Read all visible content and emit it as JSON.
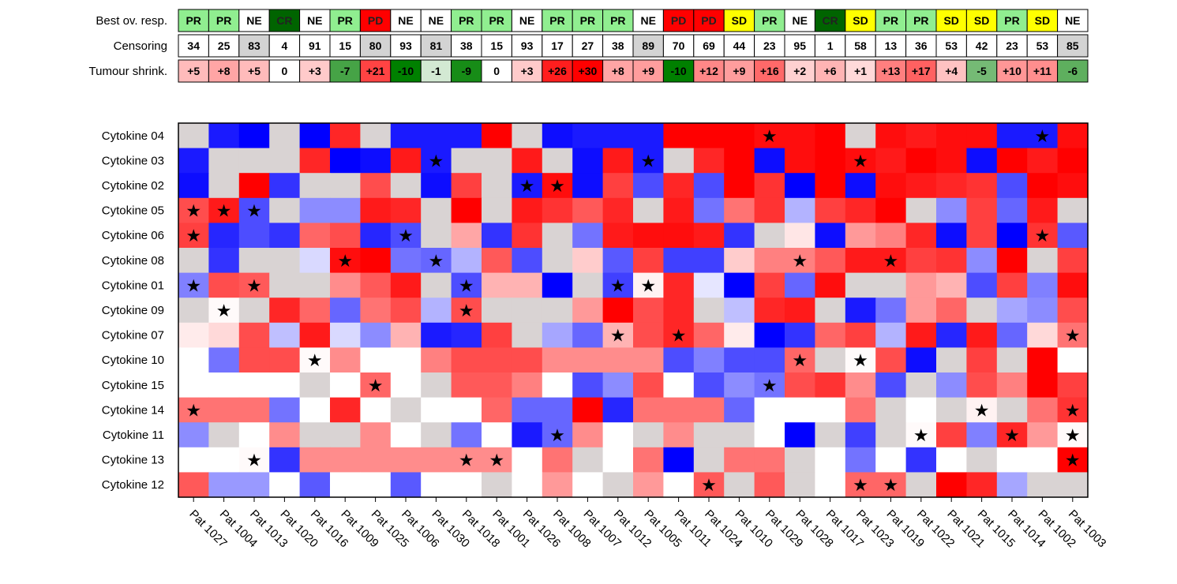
{
  "chart_data": {
    "type": "heatmap",
    "annotation_rows": [
      {
        "label": "Best ov. resp.",
        "values": [
          "PR",
          "PR",
          "NE",
          "CR",
          "NE",
          "PR",
          "PD",
          "NE",
          "NE",
          "PR",
          "PR",
          "NE",
          "PR",
          "PR",
          "PR",
          "NE",
          "PD",
          "PD",
          "SD",
          "PR",
          "NE",
          "CR",
          "SD",
          "PR",
          "PR",
          "SD",
          "SD",
          "PR",
          "SD",
          "NE"
        ]
      },
      {
        "label": "Censoring",
        "values": [
          "34",
          "25",
          "83",
          "4",
          "91",
          "15",
          "80",
          "93",
          "81",
          "38",
          "15",
          "93",
          "17",
          "27",
          "38",
          "89",
          "70",
          "69",
          "44",
          "23",
          "95",
          "1",
          "58",
          "13",
          "36",
          "53",
          "42",
          "23",
          "53",
          "85"
        ]
      },
      {
        "label": "Tumour shrink.",
        "values": [
          "+5",
          "+8",
          "+5",
          "0",
          "+3",
          "-7",
          "+21",
          "-10",
          "-1",
          "-9",
          "0",
          "+3",
          "+26",
          "+30",
          "+8",
          "+9",
          "-10",
          "+12",
          "+9",
          "+16",
          "+2",
          "+6",
          "+1",
          "+13",
          "+17",
          "+4",
          "-5",
          "+10",
          "+11",
          "-6"
        ]
      }
    ],
    "response_colors": {
      "PR": "#90ee90",
      "NE": "#ffffff",
      "CR": "#006400",
      "PD": "#ff0000",
      "SD": "#ffff00"
    },
    "censored_values": [
      "83",
      "80",
      "81",
      "89",
      "85"
    ],
    "censored_color": "#d3d3d3",
    "patients": [
      "Pat 1027",
      "Pat 1004",
      "Pat 1013",
      "Pat 1020",
      "Pat 1016",
      "Pat 1009",
      "Pat 1025",
      "Pat 1006",
      "Pat 1030",
      "Pat 1018",
      "Pat 1001",
      "Pat 1026",
      "Pat 1008",
      "Pat 1007",
      "Pat 1012",
      "Pat 1005",
      "Pat 1011",
      "Pat 1024",
      "Pat 1010",
      "Pat 1029",
      "Pat 1028",
      "Pat 1017",
      "Pat 1023",
      "Pat 1019",
      "Pat 1022",
      "Pat 1021",
      "Pat 1015",
      "Pat 1014",
      "Pat 1002",
      "Pat 1003"
    ],
    "cytokines": [
      "Cytokine 04",
      "Cytokine 03",
      "Cytokine 02",
      "Cytokine 05",
      "Cytokine 06",
      "Cytokine 08",
      "Cytokine 01",
      "Cytokine 09",
      "Cytokine 07",
      "Cytokine 10",
      "Cytokine 15",
      "Cytokine 14",
      "Cytokine 11",
      "Cytokine 13",
      "Cytokine 12"
    ],
    "value_range": [
      -1,
      1
    ],
    "na_color": "#d9d3d3",
    "values": [
      [
        null,
        -0.9,
        -1,
        null,
        -1,
        0.85,
        null,
        -0.9,
        -0.9,
        -0.9,
        1,
        null,
        -0.95,
        -0.9,
        -0.9,
        -0.9,
        1,
        1,
        1,
        0.95,
        0.95,
        1,
        null,
        0.95,
        0.9,
        0.95,
        0.95,
        -0.9,
        -0.9,
        0.95
      ],
      [
        -0.9,
        null,
        null,
        null,
        0.85,
        -1,
        -0.95,
        0.9,
        -0.9,
        null,
        null,
        0.9,
        null,
        -0.95,
        0.9,
        -0.9,
        null,
        0.85,
        1,
        -0.95,
        0.95,
        1,
        0.95,
        0.9,
        1,
        0.95,
        -0.95,
        1,
        0.9,
        1
      ],
      [
        -0.95,
        null,
        1,
        -0.8,
        null,
        null,
        0.7,
        null,
        -0.95,
        0.75,
        null,
        -0.9,
        0.95,
        -0.95,
        0.75,
        -0.7,
        0.85,
        -0.7,
        1,
        0.8,
        -1,
        1,
        -0.95,
        0.95,
        0.9,
        0.85,
        0.8,
        -0.7,
        1,
        0.95
      ],
      [
        0.7,
        0.9,
        -0.7,
        null,
        -0.45,
        -0.45,
        0.9,
        0.85,
        null,
        1,
        null,
        0.9,
        0.8,
        0.65,
        0.85,
        null,
        0.9,
        -0.55,
        0.55,
        0.8,
        -0.3,
        0.75,
        0.85,
        1,
        null,
        -0.45,
        0.75,
        -0.6,
        0.9,
        null
      ],
      [
        0.75,
        -0.85,
        -0.7,
        -0.8,
        0.6,
        0.7,
        -0.85,
        -0.7,
        null,
        0.35,
        -0.8,
        0.8,
        null,
        -0.55,
        0.9,
        0.95,
        0.95,
        0.9,
        -0.8,
        null,
        0.1,
        -0.95,
        0.4,
        0.5,
        0.85,
        -0.95,
        0.75,
        -1,
        0.8,
        -0.65
      ],
      [
        null,
        -0.8,
        null,
        null,
        -0.15,
        0.95,
        1,
        -0.55,
        -0.6,
        -0.3,
        0.65,
        -0.7,
        null,
        0.2,
        -0.65,
        0.75,
        -0.75,
        -0.75,
        0.2,
        0.5,
        0.5,
        0.65,
        0.9,
        0.9,
        0.75,
        0.8,
        -0.45,
        1,
        null,
        0.75
      ],
      [
        -0.5,
        0.7,
        0.65,
        null,
        null,
        0.45,
        0.65,
        0.9,
        null,
        -0.7,
        0.3,
        0.3,
        -1,
        null,
        -0.75,
        0.05,
        0.85,
        -0.1,
        -1,
        0.75,
        -0.6,
        0.95,
        null,
        null,
        0.4,
        0.3,
        -0.7,
        0.75,
        -0.5,
        0.95
      ],
      [
        null,
        0.02,
        null,
        0.85,
        0.6,
        -0.6,
        0.55,
        0.7,
        -0.3,
        0.7,
        null,
        null,
        null,
        0.4,
        1,
        0.7,
        0.85,
        null,
        -0.25,
        0.85,
        0.9,
        null,
        -0.9,
        -0.55,
        0.4,
        0.6,
        null,
        -0.35,
        -0.45,
        0.7
      ],
      [
        0.08,
        0.15,
        0.7,
        -0.25,
        0.9,
        -0.15,
        -0.45,
        0.3,
        -0.9,
        -0.85,
        0.75,
        null,
        -0.35,
        -0.6,
        0.3,
        0.7,
        0.85,
        0.6,
        0.08,
        -1,
        -0.8,
        0.6,
        0.75,
        -0.3,
        0.9,
        -0.85,
        0.9,
        -0.6,
        0.15,
        0.55
      ],
      [
        0,
        -0.55,
        0.7,
        0.7,
        0.02,
        0.45,
        0,
        0,
        0.5,
        0.7,
        0.7,
        0.7,
        0.45,
        0.45,
        0.45,
        0.45,
        -0.7,
        -0.5,
        -0.7,
        -0.7,
        0.6,
        null,
        0.02,
        0.7,
        -0.95,
        null,
        0.75,
        null,
        1,
        0
      ],
      [
        0,
        0,
        0,
        0,
        null,
        0,
        0.6,
        0,
        null,
        0.65,
        0.65,
        0.5,
        0,
        -0.7,
        -0.45,
        0.7,
        0,
        -0.7,
        -0.45,
        -0.55,
        0.7,
        0.8,
        0.45,
        -0.7,
        null,
        -0.45,
        0.7,
        0.5,
        1,
        0.75
      ],
      [
        0.55,
        0.55,
        0.55,
        -0.55,
        0,
        0.85,
        0,
        null,
        0,
        0,
        0.6,
        -0.6,
        -0.6,
        1,
        -0.85,
        0.55,
        0.55,
        0.55,
        -0.6,
        0,
        0,
        0,
        0.55,
        null,
        0,
        null,
        0.05,
        null,
        0.55,
        0.8
      ],
      [
        -0.45,
        null,
        0,
        0.45,
        null,
        null,
        0.45,
        0,
        null,
        -0.55,
        0,
        -0.9,
        -0.6,
        0.45,
        0,
        null,
        0.45,
        null,
        null,
        0,
        -1,
        null,
        -0.75,
        null,
        0.02,
        0.75,
        -0.5,
        0.85,
        0.4,
        0.02
      ],
      [
        0,
        0,
        0.02,
        -0.8,
        0.45,
        0.45,
        0.45,
        0.45,
        0.45,
        0.45,
        0.45,
        0,
        0.55,
        null,
        0,
        0.55,
        -1,
        null,
        0.55,
        0.55,
        null,
        0,
        -0.55,
        0,
        -0.8,
        0,
        null,
        0,
        0,
        1
      ],
      [
        0.65,
        -0.4,
        -0.4,
        0,
        -0.65,
        0,
        0,
        -0.65,
        0,
        0,
        null,
        0,
        0.4,
        0,
        null,
        0.4,
        0,
        0.65,
        null,
        0.65,
        null,
        0,
        0.6,
        0.6,
        null,
        1,
        0.85,
        -0.35,
        null,
        null
      ]
    ],
    "stars": [
      [
        19,
        28
      ],
      [
        8,
        15,
        22
      ],
      [
        11,
        12
      ],
      [
        0,
        1,
        2
      ],
      [
        0,
        7,
        28
      ],
      [
        5,
        8,
        20,
        23
      ],
      [
        0,
        2,
        9,
        14,
        15
      ],
      [
        1,
        9
      ],
      [
        14,
        16,
        29
      ],
      [
        4,
        20,
        22
      ],
      [
        6,
        19
      ],
      [
        0,
        26,
        29
      ],
      [
        12,
        24,
        27,
        29
      ],
      [
        2,
        9,
        10,
        29
      ],
      [
        17,
        22,
        23
      ]
    ],
    "star_glyph": "★",
    "xlabel": "",
    "ylabel": "",
    "grid": false,
    "legend": "none"
  }
}
